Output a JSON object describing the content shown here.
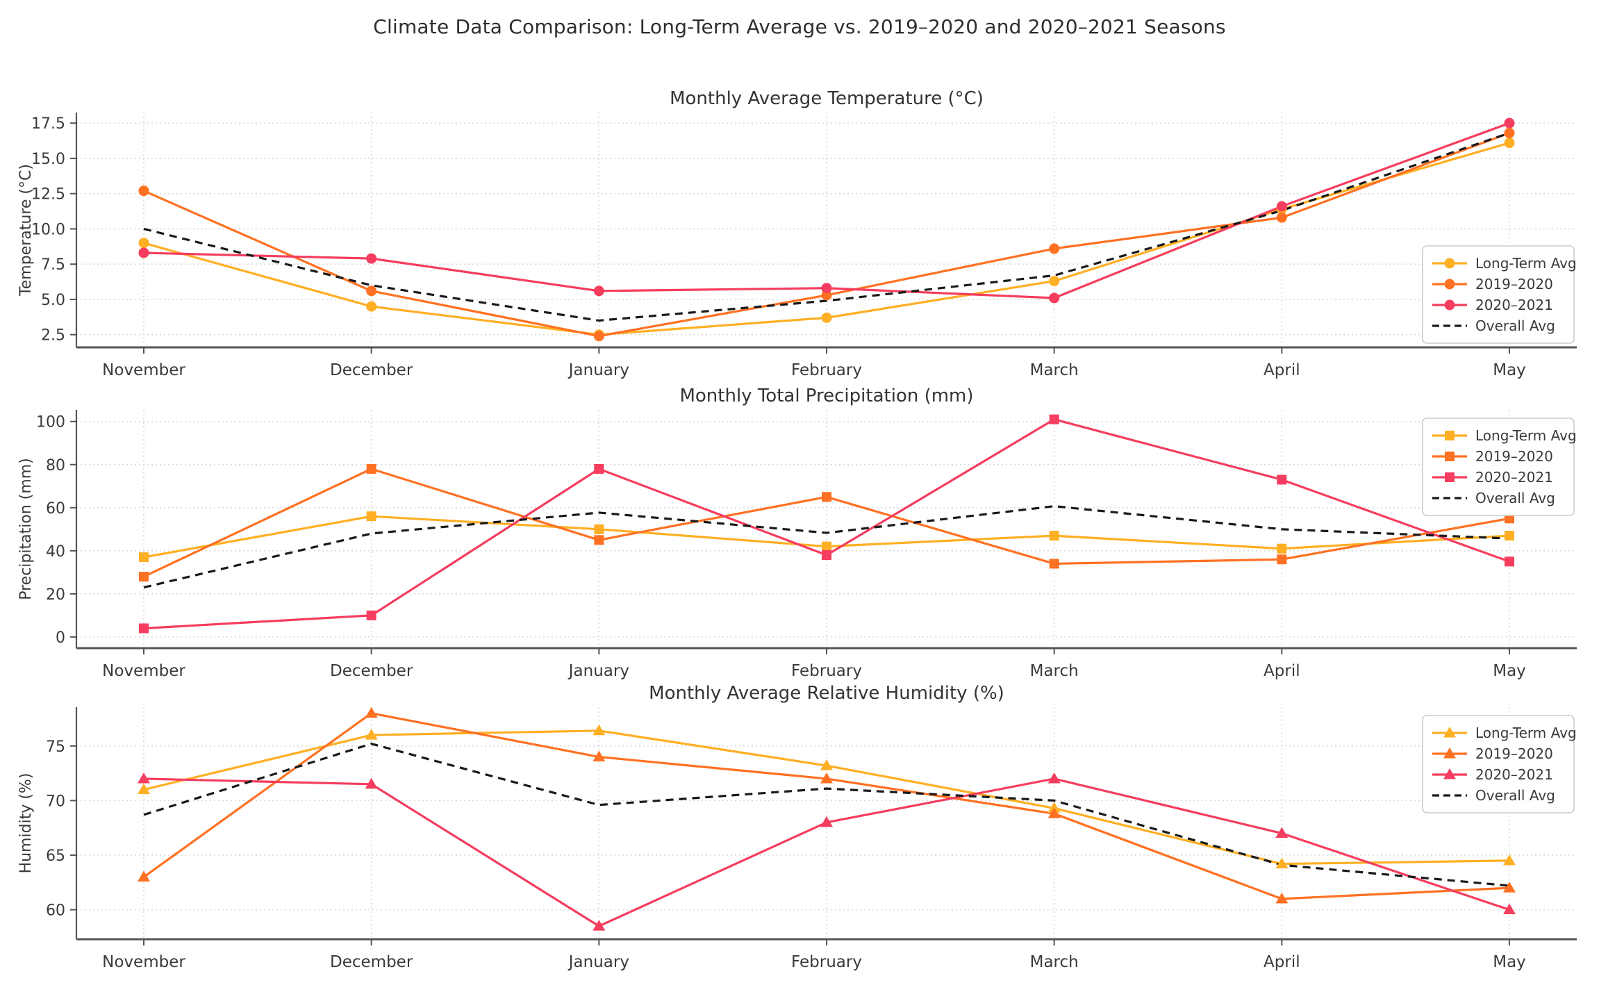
{
  "header": {
    "title": "Climate Data Comparison: Long-Term Average vs. 2019–2020 and 2020–2021 Seasons"
  },
  "months": [
    "November",
    "December",
    "January",
    "February",
    "March",
    "April",
    "May"
  ],
  "legend_labels": [
    "Long-Term Avg",
    "2019–2020",
    "2020–2021",
    "Overall Avg"
  ],
  "palette": {
    "long_term": "#FFAF24",
    "season_2019_2020": "#FF7122",
    "season_2020_2021": "#F53D5F",
    "overall": "#1A1A1A",
    "grid": "#D9D9D9",
    "spine": "#555555",
    "tick_text": "#3A3A3A",
    "title_text": "#333333",
    "legend_border": "#CCCCCC"
  },
  "chart_data": [
    {
      "type": "line",
      "title": "Monthly Average Temperature (°C)",
      "ylabel": "Temperature (°C)",
      "marker": "circle",
      "grid": true,
      "legend_position": "lower right",
      "categories": [
        "November",
        "December",
        "January",
        "February",
        "March",
        "April",
        "May"
      ],
      "yticks": [
        {
          "label": "2.5",
          "v": 2.5
        },
        {
          "label": "5.0",
          "v": 5.0
        },
        {
          "label": "7.5",
          "v": 7.5
        },
        {
          "label": "10.0",
          "v": 10.0
        },
        {
          "label": "12.5",
          "v": 12.5
        },
        {
          "label": "15.0",
          "v": 15.0
        },
        {
          "label": "17.5",
          "v": 17.5
        }
      ],
      "ylim": [
        1.6,
        18.25
      ],
      "series": [
        {
          "name": "Long-Term Avg",
          "color_key": "long_term",
          "dashed": false,
          "values": [
            9.0,
            4.5,
            2.5,
            3.7,
            6.3,
            11.4,
            16.1
          ]
        },
        {
          "name": "2019–2020",
          "color_key": "season_2019_2020",
          "dashed": false,
          "values": [
            12.7,
            5.6,
            2.4,
            5.3,
            8.6,
            10.8,
            16.8
          ]
        },
        {
          "name": "2020–2021",
          "color_key": "season_2020_2021",
          "dashed": false,
          "values": [
            8.3,
            7.9,
            5.6,
            5.8,
            5.1,
            11.6,
            17.5
          ]
        },
        {
          "name": "Overall Avg",
          "color_key": "overall",
          "dashed": true,
          "values": [
            10.0,
            6.0,
            3.5,
            4.9,
            6.7,
            11.3,
            16.8
          ]
        }
      ]
    },
    {
      "type": "line",
      "title": "Monthly Total Precipitation (mm)",
      "ylabel": "Precipitation (mm)",
      "marker": "square",
      "grid": true,
      "legend_position": "upper right",
      "categories": [
        "November",
        "December",
        "January",
        "February",
        "March",
        "April",
        "May"
      ],
      "yticks": [
        {
          "label": "0",
          "v": 0
        },
        {
          "label": "20",
          "v": 20
        },
        {
          "label": "40",
          "v": 40
        },
        {
          "label": "60",
          "v": 60
        },
        {
          "label": "80",
          "v": 80
        },
        {
          "label": "100",
          "v": 100
        }
      ],
      "ylim": [
        -5.2,
        105.4
      ],
      "series": [
        {
          "name": "Long-Term Avg",
          "color_key": "long_term",
          "dashed": false,
          "values": [
            37,
            56,
            50,
            42,
            47,
            41,
            47
          ]
        },
        {
          "name": "2019–2020",
          "color_key": "season_2019_2020",
          "dashed": false,
          "values": [
            28,
            78,
            45,
            65,
            34,
            36,
            55
          ]
        },
        {
          "name": "2020–2021",
          "color_key": "season_2020_2021",
          "dashed": false,
          "values": [
            4,
            10,
            78,
            38,
            101,
            73,
            35
          ]
        },
        {
          "name": "Overall Avg",
          "color_key": "overall",
          "dashed": true,
          "values": [
            23,
            48,
            57.7,
            48.3,
            60.7,
            50,
            45.7
          ]
        }
      ]
    },
    {
      "type": "line",
      "title": "Monthly Average Relative Humidity (%)",
      "ylabel": "Humidity (%)",
      "marker": "triangle",
      "grid": true,
      "legend_position": "upper right",
      "categories": [
        "November",
        "December",
        "January",
        "February",
        "March",
        "April",
        "May"
      ],
      "yticks": [
        {
          "label": "60",
          "v": 60
        },
        {
          "label": "65",
          "v": 65
        },
        {
          "label": "70",
          "v": 70
        },
        {
          "label": "75",
          "v": 75
        }
      ],
      "ylim": [
        57.3,
        78.55
      ],
      "series": [
        {
          "name": "Long-Term Avg",
          "color_key": "long_term",
          "dashed": false,
          "values": [
            71,
            76,
            76.4,
            73.2,
            69.3,
            64.2,
            64.5
          ]
        },
        {
          "name": "2019–2020",
          "color_key": "season_2019_2020",
          "dashed": false,
          "values": [
            63,
            78,
            74,
            72,
            68.8,
            61,
            62
          ]
        },
        {
          "name": "2020–2021",
          "color_key": "season_2020_2021",
          "dashed": false,
          "values": [
            72,
            71.5,
            58.5,
            68,
            72,
            67,
            60
          ]
        },
        {
          "name": "Overall Avg",
          "color_key": "overall",
          "dashed": true,
          "values": [
            68.7,
            75.2,
            69.6,
            71.1,
            70.0,
            64.1,
            62.2
          ]
        }
      ]
    }
  ]
}
